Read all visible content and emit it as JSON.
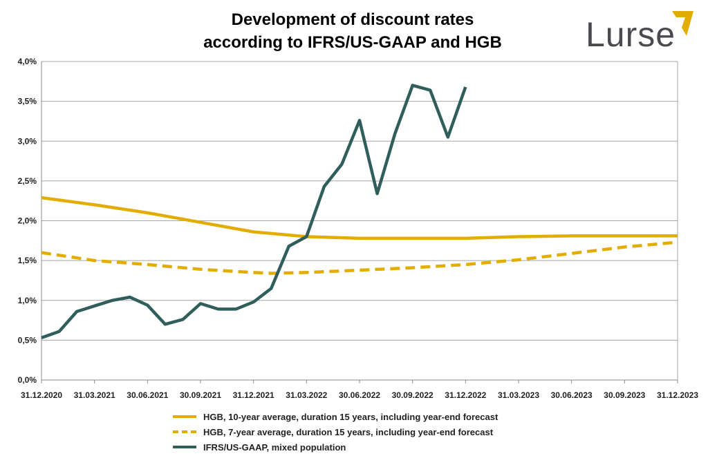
{
  "logo": {
    "text": "Lurse",
    "text_color": "#4a4a4f",
    "mark_color": "#e3ad00"
  },
  "chart_data": {
    "type": "line",
    "title_lines": [
      "Development of discount rates",
      "according to IFRS/US-GAAP and HGB"
    ],
    "xlabel": "",
    "ylabel": "",
    "ylim": [
      0,
      4
    ],
    "yticks": [
      "0,0%",
      "0,5%",
      "1,0%",
      "1,5%",
      "2,0%",
      "2,5%",
      "3,0%",
      "3,5%",
      "4,0%"
    ],
    "xticks": [
      "31.12.2020",
      "31.03.2021",
      "30.06.2021",
      "30.09.2021",
      "31.12.2021",
      "31.03.2022",
      "30.06.2022",
      "30.09.2022",
      "31.12.2022",
      "31.03.2023",
      "30.06.2023",
      "30.09.2023",
      "31.12.2023"
    ],
    "xlim": [
      "31.12.2020",
      "31.12.2023"
    ],
    "grid": "horizontal",
    "legend_position": "bottom",
    "series": [
      {
        "name": "HGB, 10-year average, duration 15 years, including year-end forecast",
        "color": "#e3ad00",
        "style": "solid",
        "x": [
          "31.12.2020",
          "31.03.2021",
          "30.06.2021",
          "30.09.2021",
          "31.12.2021",
          "31.03.2022",
          "30.06.2022",
          "30.09.2022",
          "31.12.2022",
          "31.03.2023",
          "30.06.2023",
          "30.09.2023",
          "31.12.2023"
        ],
        "values": [
          2.29,
          2.2,
          2.1,
          1.98,
          1.86,
          1.8,
          1.78,
          1.78,
          1.78,
          1.8,
          1.81,
          1.81,
          1.81
        ]
      },
      {
        "name": "HGB, 7-year average, duration 15 years, including year-end forecast",
        "color": "#e3ad00",
        "style": "dashed",
        "x": [
          "31.12.2020",
          "31.03.2021",
          "30.06.2021",
          "30.09.2021",
          "31.12.2021",
          "31.01.2022",
          "31.03.2022",
          "30.06.2022",
          "30.09.2022",
          "31.12.2022",
          "31.03.2023",
          "30.06.2023",
          "30.09.2023",
          "31.12.2023"
        ],
        "values": [
          1.6,
          1.5,
          1.45,
          1.39,
          1.35,
          1.34,
          1.35,
          1.38,
          1.41,
          1.45,
          1.51,
          1.59,
          1.67,
          1.73
        ]
      },
      {
        "name": "IFRS/US-GAAP, mixed population",
        "color": "#2f5e5c",
        "style": "solid",
        "x": [
          "31.12.2020",
          "31.01.2021",
          "28.02.2021",
          "31.03.2021",
          "30.04.2021",
          "31.05.2021",
          "30.06.2021",
          "31.07.2021",
          "31.08.2021",
          "30.09.2021",
          "31.10.2021",
          "30.11.2021",
          "31.12.2021",
          "31.01.2022",
          "28.02.2022",
          "31.03.2022",
          "30.04.2022",
          "31.05.2022",
          "30.06.2022",
          "31.07.2022",
          "31.08.2022",
          "30.09.2022",
          "31.10.2022",
          "30.11.2022",
          "31.12.2022"
        ],
        "values": [
          0.53,
          0.61,
          0.86,
          0.93,
          1.0,
          1.04,
          0.94,
          0.7,
          0.76,
          0.96,
          0.89,
          0.89,
          0.98,
          1.15,
          1.68,
          1.8,
          2.43,
          2.71,
          3.26,
          2.34,
          3.09,
          3.7,
          3.64,
          3.05,
          3.68
        ]
      }
    ]
  }
}
